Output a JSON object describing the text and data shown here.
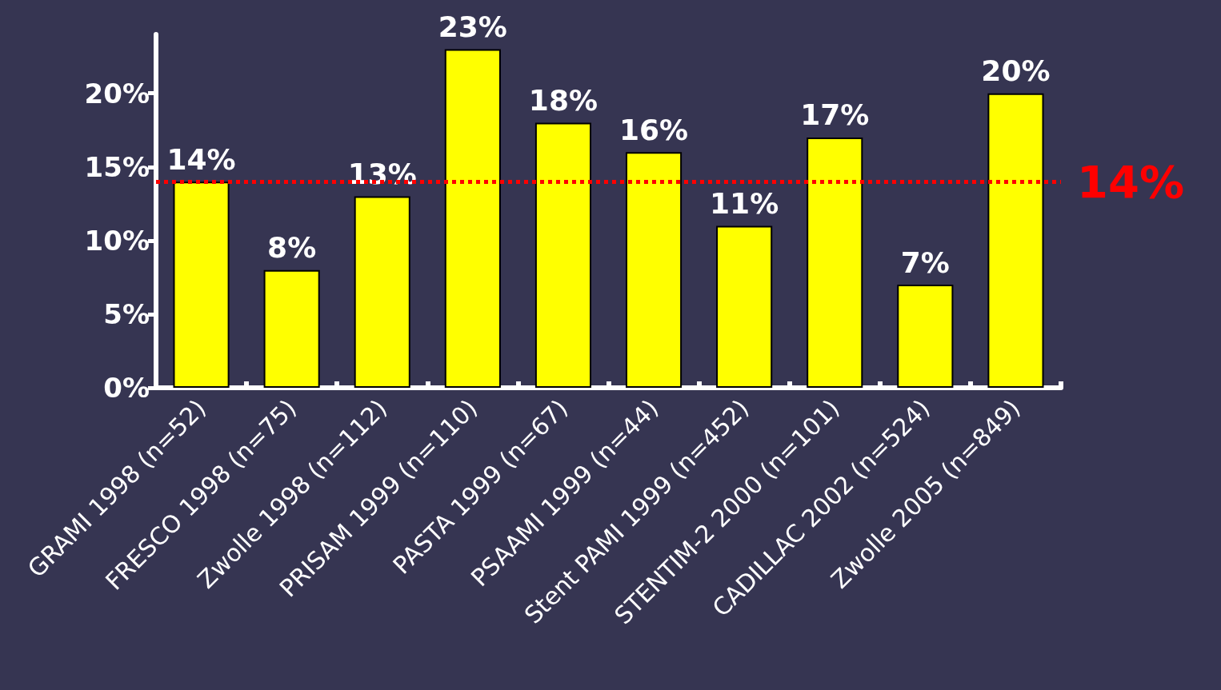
{
  "chart_data": {
    "type": "bar",
    "categories": [
      "GRAMI 1998 (n=52)",
      "FRESCO 1998 (n=75)",
      "Zwolle 1998 (n=112)",
      "PRISAM 1999 (n=110)",
      "PASTA 1999 (n=67)",
      "PSAAMI 1999 (n=44)",
      "Stent PAMI 1999 (n=452)",
      "STENTIM-2 2000 (n=101)",
      "CADILLAC 2002 (n=524)",
      "Zwolle 2005 (n=849)"
    ],
    "values": [
      14,
      8,
      13,
      23,
      18,
      16,
      11,
      17,
      7,
      20
    ],
    "value_labels": [
      "14%",
      "8%",
      "13%",
      "23%",
      "18%",
      "16%",
      "11%",
      "17%",
      "7%",
      "20%"
    ],
    "color": "#ffff00",
    "ylim": [
      0,
      24
    ],
    "yticks": [
      {
        "value": 0,
        "label": "0%"
      },
      {
        "value": 5,
        "label": "5%"
      },
      {
        "value": 10,
        "label": "10%"
      },
      {
        "value": 15,
        "label": "15%"
      },
      {
        "value": 20,
        "label": "20%"
      }
    ],
    "ref_lines": [
      {
        "axis": "y",
        "value": 14,
        "label": "14%",
        "color": "#ff0000",
        "line_style": "dotted"
      }
    ],
    "grid": false
  }
}
